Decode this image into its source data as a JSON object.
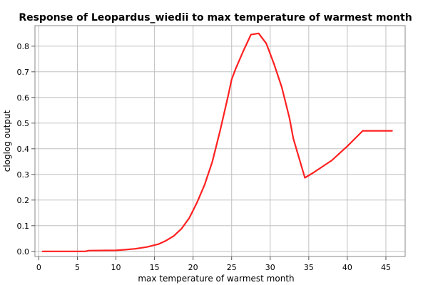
{
  "chart_data": {
    "type": "line",
    "title": "Response of Leopardus_wiedii to max temperature of warmest month",
    "xlabel": "max temperature of warmest month",
    "ylabel": "cloglog output",
    "xlim": [
      -0.5,
      47.5
    ],
    "ylim": [
      -0.02,
      0.88
    ],
    "xticks": [
      0,
      5,
      10,
      15,
      20,
      25,
      30,
      35,
      40,
      45
    ],
    "yticks": [
      0.0,
      0.1,
      0.2,
      0.3,
      0.4,
      0.5,
      0.6,
      0.7,
      0.8
    ],
    "xtick_labels": [
      "0",
      "5",
      "10",
      "15",
      "20",
      "25",
      "30",
      "35",
      "40",
      "45"
    ],
    "ytick_labels": [
      "0.0",
      "0.1",
      "0.2",
      "0.3",
      "0.4",
      "0.5",
      "0.6",
      "0.7",
      "0.8"
    ],
    "grid": true,
    "legend": "none",
    "series": [
      {
        "color": "#ff2020",
        "x": [
          0.5,
          6.0,
          6.5,
          10.0,
          11.0,
          12.5,
          14.0,
          15.5,
          16.5,
          17.5,
          18.5,
          19.5,
          20.5,
          21.5,
          22.5,
          23.5,
          24.5,
          25.0,
          25.5,
          26.5,
          27.5,
          28.5,
          29.5,
          30.5,
          31.5,
          32.5,
          33.0,
          34.5,
          35.5,
          38.0,
          40.0,
          42.0,
          45.8
        ],
        "y": [
          0.0,
          0.0,
          0.003,
          0.004,
          0.006,
          0.01,
          0.017,
          0.028,
          0.042,
          0.06,
          0.088,
          0.13,
          0.19,
          0.26,
          0.35,
          0.47,
          0.6,
          0.67,
          0.71,
          0.78,
          0.845,
          0.85,
          0.81,
          0.73,
          0.64,
          0.52,
          0.44,
          0.287,
          0.305,
          0.355,
          0.41,
          0.47,
          0.47
        ]
      }
    ]
  }
}
